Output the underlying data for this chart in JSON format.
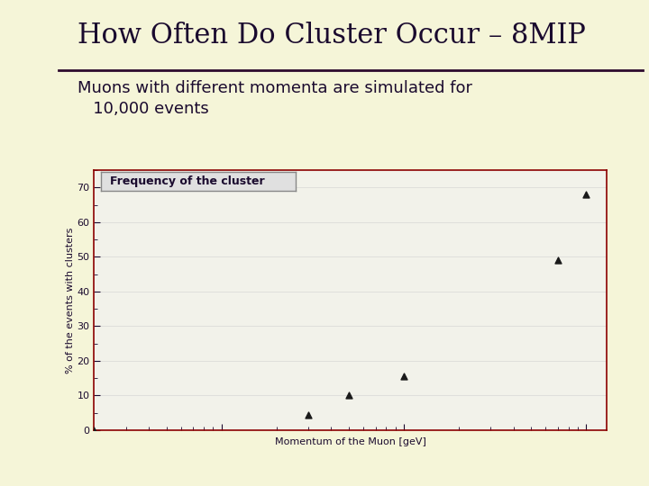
{
  "title": "How Often Do Cluster Occur – 8MIP",
  "subtitle_line1": "Muons with different momenta are simulated for",
  "subtitle_line2": "   10,000 events",
  "plot_title": "Frequency of the cluster",
  "xlabel": "Momentum of the Muon [geV]",
  "ylabel": "% of the events with clusters",
  "x_data": [
    2.0,
    30.0,
    50.0,
    100.0,
    700.0,
    1000.0
  ],
  "y_data": [
    0.0,
    4.5,
    10.0,
    15.5,
    49.0,
    68.0
  ],
  "xlim_log": [
    2,
    1300
  ],
  "ylim": [
    0,
    75
  ],
  "yticks": [
    0,
    10,
    20,
    30,
    40,
    50,
    60,
    70
  ],
  "bg_color": "#f5f5d8",
  "plot_bg_color": "#f2f2ea",
  "title_color": "#1a0a2e",
  "subtitle_color": "#1a0a2e",
  "marker_color": "#1a1a1a",
  "spine_color": "#8b0000",
  "plot_title_bg": "#e0e0e0",
  "plot_title_border": "#888888",
  "hrule_color": "#2d0a2e",
  "gray_block_color": "#aaaaaa"
}
